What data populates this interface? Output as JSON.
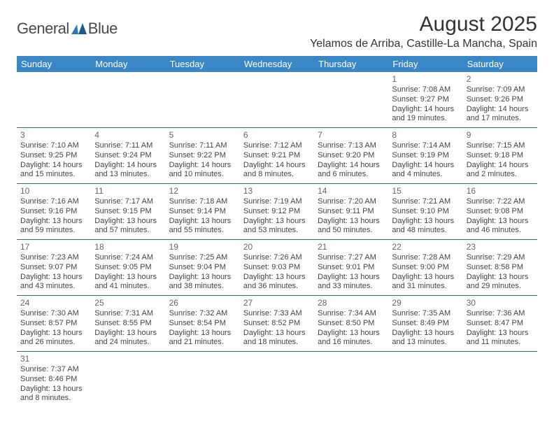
{
  "logo": {
    "word1": "General",
    "word2": "Blue"
  },
  "title": "August 2025",
  "location": "Yelamos de Arriba, Castille-La Mancha, Spain",
  "headerRow": {
    "bg": "#3a87c7",
    "color": "#ffffff"
  },
  "dayNames": [
    "Sunday",
    "Monday",
    "Tuesday",
    "Wednesday",
    "Thursday",
    "Friday",
    "Saturday"
  ],
  "startOffset": 5,
  "days": [
    {
      "n": 1,
      "sr": "7:08 AM",
      "ss": "9:27 PM",
      "dl": "14 hours and 19 minutes."
    },
    {
      "n": 2,
      "sr": "7:09 AM",
      "ss": "9:26 PM",
      "dl": "14 hours and 17 minutes."
    },
    {
      "n": 3,
      "sr": "7:10 AM",
      "ss": "9:25 PM",
      "dl": "14 hours and 15 minutes."
    },
    {
      "n": 4,
      "sr": "7:11 AM",
      "ss": "9:24 PM",
      "dl": "14 hours and 13 minutes."
    },
    {
      "n": 5,
      "sr": "7:11 AM",
      "ss": "9:22 PM",
      "dl": "14 hours and 10 minutes."
    },
    {
      "n": 6,
      "sr": "7:12 AM",
      "ss": "9:21 PM",
      "dl": "14 hours and 8 minutes."
    },
    {
      "n": 7,
      "sr": "7:13 AM",
      "ss": "9:20 PM",
      "dl": "14 hours and 6 minutes."
    },
    {
      "n": 8,
      "sr": "7:14 AM",
      "ss": "9:19 PM",
      "dl": "14 hours and 4 minutes."
    },
    {
      "n": 9,
      "sr": "7:15 AM",
      "ss": "9:18 PM",
      "dl": "14 hours and 2 minutes."
    },
    {
      "n": 10,
      "sr": "7:16 AM",
      "ss": "9:16 PM",
      "dl": "13 hours and 59 minutes."
    },
    {
      "n": 11,
      "sr": "7:17 AM",
      "ss": "9:15 PM",
      "dl": "13 hours and 57 minutes."
    },
    {
      "n": 12,
      "sr": "7:18 AM",
      "ss": "9:14 PM",
      "dl": "13 hours and 55 minutes."
    },
    {
      "n": 13,
      "sr": "7:19 AM",
      "ss": "9:12 PM",
      "dl": "13 hours and 53 minutes."
    },
    {
      "n": 14,
      "sr": "7:20 AM",
      "ss": "9:11 PM",
      "dl": "13 hours and 50 minutes."
    },
    {
      "n": 15,
      "sr": "7:21 AM",
      "ss": "9:10 PM",
      "dl": "13 hours and 48 minutes."
    },
    {
      "n": 16,
      "sr": "7:22 AM",
      "ss": "9:08 PM",
      "dl": "13 hours and 46 minutes."
    },
    {
      "n": 17,
      "sr": "7:23 AM",
      "ss": "9:07 PM",
      "dl": "13 hours and 43 minutes."
    },
    {
      "n": 18,
      "sr": "7:24 AM",
      "ss": "9:05 PM",
      "dl": "13 hours and 41 minutes."
    },
    {
      "n": 19,
      "sr": "7:25 AM",
      "ss": "9:04 PM",
      "dl": "13 hours and 38 minutes."
    },
    {
      "n": 20,
      "sr": "7:26 AM",
      "ss": "9:03 PM",
      "dl": "13 hours and 36 minutes."
    },
    {
      "n": 21,
      "sr": "7:27 AM",
      "ss": "9:01 PM",
      "dl": "13 hours and 33 minutes."
    },
    {
      "n": 22,
      "sr": "7:28 AM",
      "ss": "9:00 PM",
      "dl": "13 hours and 31 minutes."
    },
    {
      "n": 23,
      "sr": "7:29 AM",
      "ss": "8:58 PM",
      "dl": "13 hours and 29 minutes."
    },
    {
      "n": 24,
      "sr": "7:30 AM",
      "ss": "8:57 PM",
      "dl": "13 hours and 26 minutes."
    },
    {
      "n": 25,
      "sr": "7:31 AM",
      "ss": "8:55 PM",
      "dl": "13 hours and 24 minutes."
    },
    {
      "n": 26,
      "sr": "7:32 AM",
      "ss": "8:54 PM",
      "dl": "13 hours and 21 minutes."
    },
    {
      "n": 27,
      "sr": "7:33 AM",
      "ss": "8:52 PM",
      "dl": "13 hours and 18 minutes."
    },
    {
      "n": 28,
      "sr": "7:34 AM",
      "ss": "8:50 PM",
      "dl": "13 hours and 16 minutes."
    },
    {
      "n": 29,
      "sr": "7:35 AM",
      "ss": "8:49 PM",
      "dl": "13 hours and 13 minutes."
    },
    {
      "n": 30,
      "sr": "7:36 AM",
      "ss": "8:47 PM",
      "dl": "13 hours and 11 minutes."
    },
    {
      "n": 31,
      "sr": "7:37 AM",
      "ss": "8:46 PM",
      "dl": "13 hours and 8 minutes."
    }
  ],
  "labels": {
    "sunrise": "Sunrise: ",
    "sunset": "Sunset: ",
    "daylight": "Daylight: "
  }
}
